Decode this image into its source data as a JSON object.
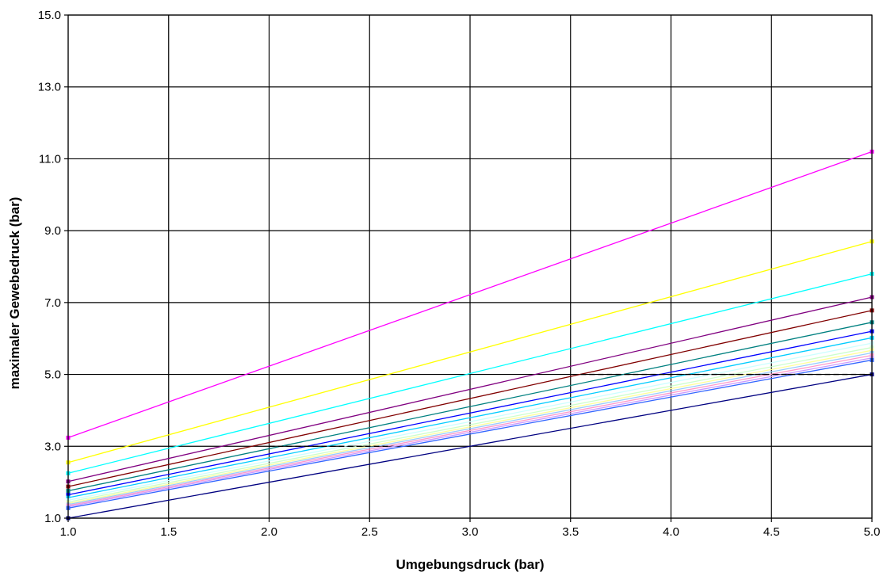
{
  "chart_data": {
    "type": "line",
    "title": "",
    "xlabel": "Umgebungsdruck (bar)",
    "ylabel": "maximaler Gewebedruck (bar)",
    "xlim": [
      1.0,
      5.0
    ],
    "ylim": [
      1.0,
      15.0
    ],
    "x_ticks": [
      "1.0",
      "1.5",
      "2.0",
      "2.5",
      "3.0",
      "3.5",
      "4.0",
      "4.5",
      "5.0"
    ],
    "y_ticks": [
      "1.0",
      "3.0",
      "5.0",
      "7.0",
      "9.0",
      "11.0",
      "13.0",
      "15.0"
    ],
    "x_tick_values": [
      1.0,
      1.5,
      2.0,
      2.5,
      3.0,
      3.5,
      4.0,
      4.5,
      5.0
    ],
    "y_tick_values": [
      1.0,
      3.0,
      5.0,
      7.0,
      9.0,
      11.0,
      13.0,
      15.0
    ],
    "grid": true,
    "legend": "none",
    "x": [
      1.0,
      5.0
    ],
    "series": [
      {
        "color": "#ff00ff",
        "values": [
          3.24,
          11.2
        ]
      },
      {
        "color": "#ffff00",
        "values": [
          2.55,
          8.7
        ]
      },
      {
        "color": "#00ffff",
        "values": [
          2.25,
          7.8
        ]
      },
      {
        "color": "#800080",
        "values": [
          2.02,
          7.15
        ]
      },
      {
        "color": "#800000",
        "values": [
          1.88,
          6.78
        ]
      },
      {
        "color": "#008080",
        "values": [
          1.76,
          6.45
        ]
      },
      {
        "color": "#0000ff",
        "values": [
          1.65,
          6.2
        ]
      },
      {
        "color": "#00ccff",
        "values": [
          1.57,
          6.02
        ]
      },
      {
        "color": "#ccffff",
        "values": [
          1.5,
          5.87
        ]
      },
      {
        "color": "#ccffcc",
        "values": [
          1.45,
          5.75
        ]
      },
      {
        "color": "#ffff99",
        "values": [
          1.41,
          5.67
        ]
      },
      {
        "color": "#99ccff",
        "values": [
          1.38,
          5.6
        ]
      },
      {
        "color": "#ff99cc",
        "values": [
          1.35,
          5.53
        ]
      },
      {
        "color": "#cc99ff",
        "values": [
          1.32,
          5.46
        ]
      },
      {
        "color": "#3366ff",
        "values": [
          1.28,
          5.4
        ]
      },
      {
        "color": "#000080",
        "values": [
          1.0,
          5.0
        ]
      }
    ],
    "dashed_reference_lines": [
      {
        "color": "#000000",
        "from": [
          2.0,
          3.0
        ],
        "to": [
          2.6,
          3.0
        ]
      },
      {
        "color": "#000000",
        "from": [
          3.55,
          5.0
        ],
        "to": [
          5.0,
          5.0
        ]
      }
    ]
  }
}
